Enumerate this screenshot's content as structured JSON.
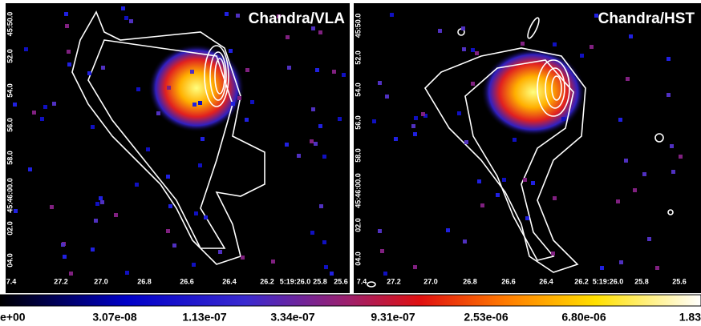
{
  "panels": [
    {
      "title": "Chandra/VLA",
      "x_labels": [
        "7.4",
        "27.2",
        "27.0",
        "26.8",
        "26.6",
        "26.4",
        "26.2",
        "5:19:26.0",
        "25.8",
        "25.6"
      ],
      "y_labels": [
        "45:50.0",
        "52.0",
        "54.0",
        "56.0",
        "58.0",
        "45:46:00.0",
        "02.0",
        "04.0"
      ]
    },
    {
      "title": "Chandra/HST",
      "x_labels": [
        "7.4",
        "27.2",
        "27.0",
        "26.8",
        "26.6",
        "26.4",
        "26.2",
        "5:19:26.0",
        "25.8",
        "25.6"
      ],
      "y_labels": [
        "45:50.0",
        "52.0",
        "54.0",
        "56.0",
        "58.0",
        "45:46:00.0",
        "02.0",
        "04.0"
      ]
    }
  ],
  "colorbar": {
    "labels": [
      "e+00",
      "3.07e-08",
      "1.13e-07",
      "3.34e-07",
      "9.31e-07",
      "2.53e-06",
      "6.80e-06",
      "1.83"
    ]
  }
}
